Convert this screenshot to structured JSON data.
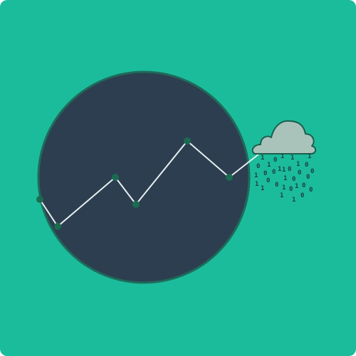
{
  "colors": {
    "background": "#1bbc9b",
    "circle_fill": "#2d3e50",
    "circle_stroke": "#1f6a5a",
    "line": "#e6efef",
    "node": "#1a6b50",
    "cloud_fill": "#a9c3bb",
    "cloud_stroke": "#1c5f4c",
    "digits": "#1d3f45"
  },
  "icons": {
    "circle": "dark-circle-icon",
    "chart": "trend-line-icon",
    "cloud": "cloud-icon",
    "rain": "binary-rain-icon"
  },
  "binary_rain": [
    "1",
    "0",
    "1",
    "1",
    "1",
    "0",
    "1",
    "1",
    "0",
    "1",
    "0",
    "1",
    "0",
    "0",
    "1",
    "0",
    "0",
    "1",
    "0",
    "1",
    "0",
    "0",
    "1",
    "0",
    "1",
    "0",
    "1",
    "0",
    "0",
    "1",
    "1",
    "0",
    "1",
    "0"
  ]
}
